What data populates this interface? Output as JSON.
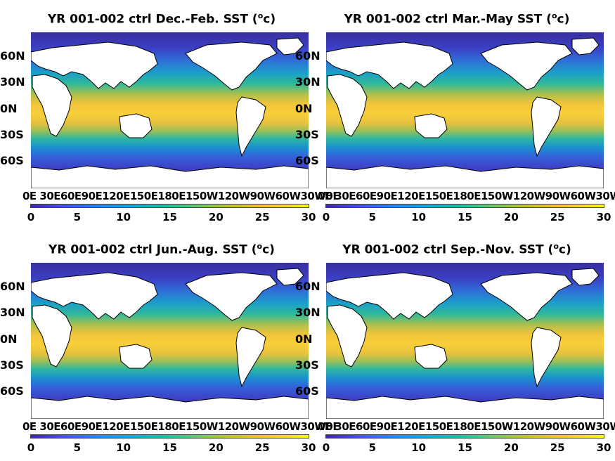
{
  "panels": [
    {
      "title": "YR 001-002 ctrl Dec.-Feb. SST (",
      "unit_sup": "o",
      "unit_end": "c)"
    },
    {
      "title": "YR 001-002 ctrl Mar.-May SST (",
      "unit_sup": "o",
      "unit_end": "c)"
    },
    {
      "title": "YR 001-002 ctrl Jun.-Aug. SST (",
      "unit_sup": "o",
      "unit_end": "c)"
    },
    {
      "title": "YR 001-002 ctrl Sep.-Nov. SST (",
      "unit_sup": "o",
      "unit_end": "c)"
    }
  ],
  "lat_labels": [
    "60N",
    "30N",
    "0N",
    "30S",
    "60S"
  ],
  "lon_labels": "0E 30E60E90E120E150E180E150W120W90W60W30W0E",
  "colorbar": {
    "ticks": [
      "0",
      "5",
      "10",
      "15",
      "20",
      "25",
      "30"
    ],
    "range": [
      0,
      30
    ],
    "colors": [
      "#3e26a8",
      "#2a84f5",
      "#17bfa8",
      "#c3c22f",
      "#f9fb0e"
    ]
  }
}
